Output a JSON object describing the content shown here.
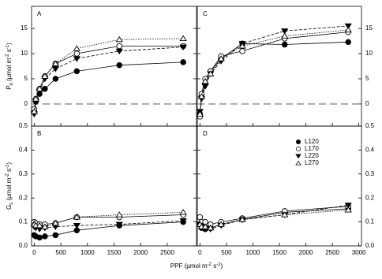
{
  "chart_data": [
    {
      "type": "line",
      "panel": "A",
      "x": [
        0,
        30,
        100,
        200,
        400,
        800,
        1600,
        2800
      ],
      "xlim": [
        -50,
        3050
      ],
      "xticks": [
        0,
        500,
        1000,
        1500,
        2000,
        2500
      ],
      "show_xtick_labels": false,
      "ylim": [
        -4.4,
        19.4
      ],
      "yticks": [
        0,
        5,
        10,
        15
      ],
      "yaxis_side": "left",
      "zero_line": true,
      "y_label": [
        "P",
        "n",
        " (µmol m",
        "-2",
        " s",
        "-1",
        ")"
      ],
      "series": [
        {
          "marker": "filled-circle",
          "color": "#000000",
          "values": [
            -1.5,
            0.5,
            2,
            3,
            5,
            6.5,
            7.7,
            8.3
          ]
        },
        {
          "marker": "open-circle",
          "color": "#000000",
          "values": [
            -1,
            1,
            3,
            5.5,
            8,
            10,
            11.5,
            11.5
          ]
        },
        {
          "marker": "filled-triangle-down",
          "color": "#000000",
          "values": [
            -2,
            0.5,
            2.5,
            5,
            7,
            9,
            10.5,
            11.3
          ]
        },
        {
          "marker": "open-triangle-up",
          "color": "#000000",
          "values": [
            -1.5,
            1,
            3,
            5.5,
            8,
            11,
            12.8,
            13
          ]
        }
      ]
    },
    {
      "type": "line",
      "panel": "B",
      "x": [
        0,
        30,
        100,
        200,
        400,
        800,
        1600,
        2800
      ],
      "xlim": [
        -50,
        3050
      ],
      "xticks": [
        0,
        500,
        1000,
        1500,
        2000,
        2500
      ],
      "show_xtick_labels": true,
      "ylim": [
        0,
        0.5
      ],
      "yticks": [
        {
          "value": 0,
          "label": "0.0"
        },
        0.1,
        0.2,
        0.3,
        0.4,
        0.5
      ],
      "yaxis_side": "left",
      "zero_line": false,
      "y_label": [
        "G",
        "s",
        " (µmol m",
        "-2",
        " s",
        "-1",
        ")"
      ],
      "x_label": [
        "PPF (µmol m",
        "-2",
        " s",
        "-1",
        ")"
      ],
      "series": [
        {
          "marker": "filled-circle",
          "color": "#000000",
          "values": [
            0.045,
            0.04,
            0.035,
            0.04,
            0.045,
            0.065,
            0.085,
            0.1
          ]
        },
        {
          "marker": "open-circle",
          "color": "#000000",
          "values": [
            0.1,
            0.095,
            0.09,
            0.09,
            0.095,
            0.12,
            0.12,
            0.13
          ]
        },
        {
          "marker": "filled-triangle-down",
          "color": "#000000",
          "values": [
            0.08,
            0.075,
            0.07,
            0.075,
            0.08,
            0.085,
            0.09,
            0.105
          ]
        },
        {
          "marker": "open-triangle-up",
          "color": "#000000",
          "values": [
            0.09,
            0.085,
            0.085,
            0.08,
            0.095,
            0.12,
            0.13,
            0.14
          ]
        }
      ]
    },
    {
      "type": "line",
      "panel": "C",
      "x": [
        0,
        30,
        100,
        200,
        400,
        800,
        1600,
        2800
      ],
      "xlim": [
        -50,
        3050
      ],
      "xticks": [
        0,
        500,
        1000,
        1500,
        2000,
        2500,
        3000
      ],
      "show_xtick_labels": false,
      "ylim": [
        -4.4,
        19.4
      ],
      "yticks": [
        0,
        5,
        10,
        15
      ],
      "yaxis_side": "right",
      "zero_line": true,
      "series": [
        {
          "marker": "filled-circle",
          "color": "#000000",
          "values": [
            -2,
            1.5,
            4,
            6.5,
            9,
            12,
            11.8,
            12.3
          ]
        },
        {
          "marker": "open-circle",
          "color": "#000000",
          "values": [
            -2.5,
            2,
            5,
            6.5,
            9.5,
            10.5,
            13,
            14.3
          ]
        },
        {
          "marker": "filled-triangle-down",
          "color": "#000000",
          "values": [
            -1.5,
            1,
            3.5,
            6,
            8.5,
            12,
            14.5,
            15.5
          ]
        },
        {
          "marker": "open-triangle-up",
          "color": "#000000",
          "values": [
            -2,
            1.5,
            4.5,
            6,
            9,
            11.5,
            13.5,
            14.7
          ]
        }
      ]
    },
    {
      "type": "line",
      "panel": "D",
      "x": [
        0,
        30,
        100,
        200,
        400,
        800,
        1600,
        2800
      ],
      "xlim": [
        -50,
        3050
      ],
      "xticks": [
        0,
        500,
        1000,
        1500,
        2000,
        2500,
        3000
      ],
      "show_xtick_labels": true,
      "ylim": [
        0,
        0.5
      ],
      "yticks": [
        {
          "value": 0,
          "label": "0.0"
        },
        0.1,
        0.2,
        0.3,
        0.4,
        0.5
      ],
      "yaxis_side": "right",
      "zero_line": false,
      "legend": "upper-right",
      "series": [
        {
          "name": "L120",
          "marker": "filled-circle",
          "color": "#000000",
          "values": [
            0.09,
            0.075,
            0.07,
            0.075,
            0.09,
            0.11,
            0.14,
            0.155
          ]
        },
        {
          "name": "L170",
          "marker": "open-circle",
          "color": "#000000",
          "values": [
            0.12,
            0.1,
            0.1,
            0.09,
            0.1,
            0.115,
            0.145,
            0.165
          ]
        },
        {
          "name": "L220",
          "marker": "filled-triangle-down",
          "color": "#000000",
          "values": [
            0.085,
            0.08,
            0.075,
            0.07,
            0.085,
            0.11,
            0.13,
            0.17
          ]
        },
        {
          "name": "L270",
          "marker": "open-triangle-up",
          "color": "#000000",
          "values": [
            0.09,
            0.08,
            0.08,
            0.075,
            0.09,
            0.11,
            0.13,
            0.15
          ]
        }
      ]
    }
  ]
}
